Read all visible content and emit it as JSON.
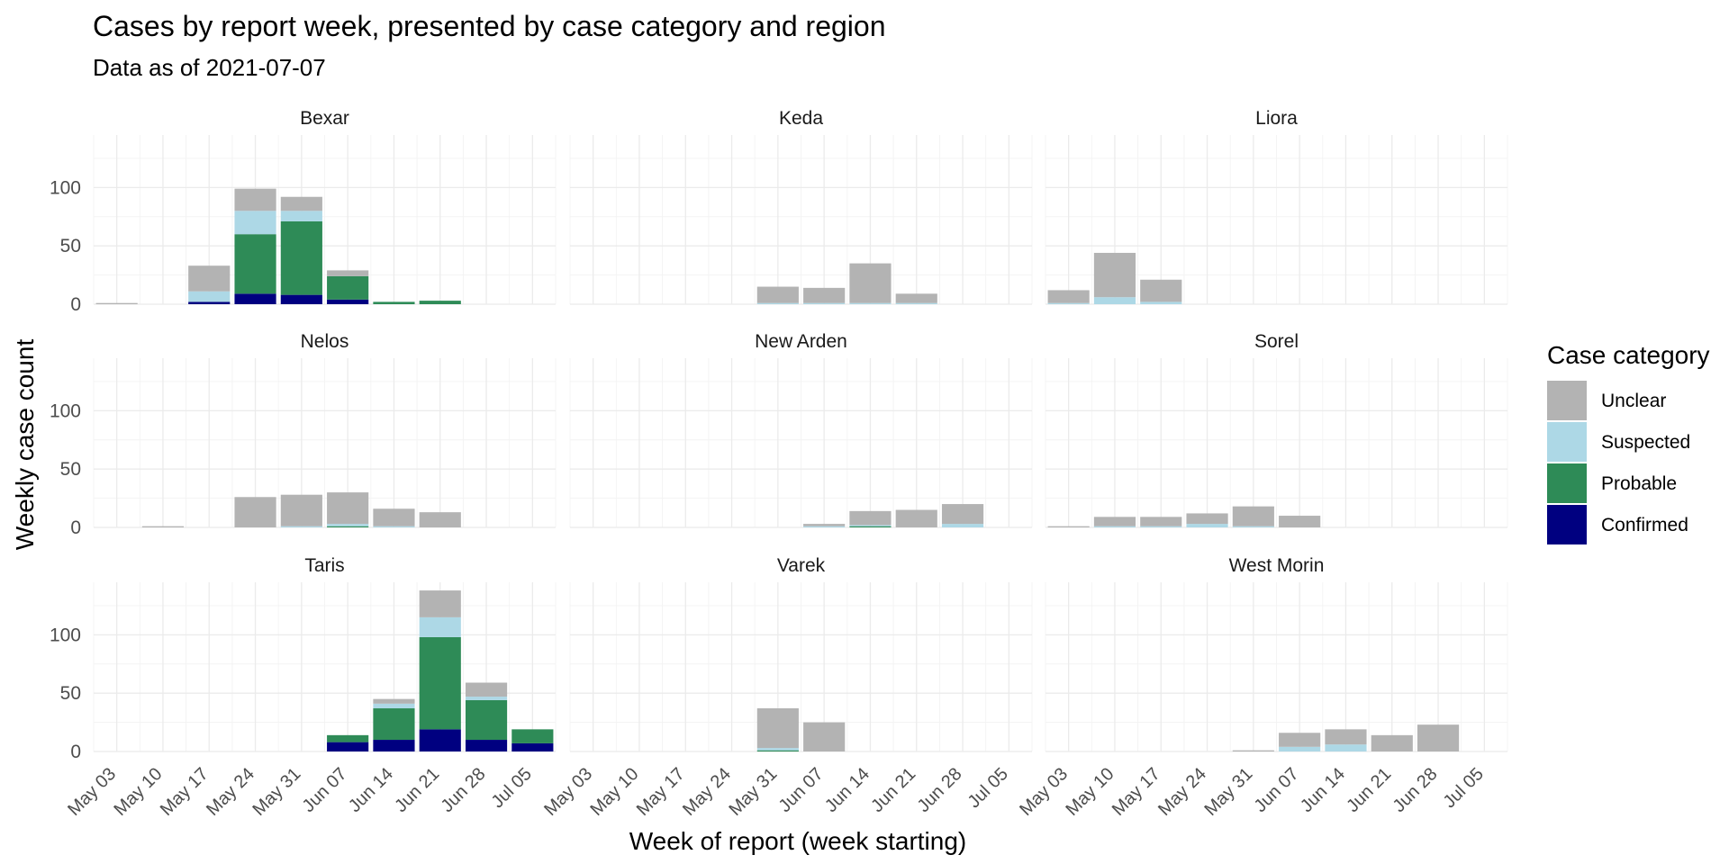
{
  "chart_data": {
    "type": "bar",
    "stacked": true,
    "title": "Cases by report week, presented by case category and region",
    "subtitle": "Data as of 2021-07-07",
    "xlabel": "Week of report (week starting)",
    "ylabel": "Weekly case count",
    "ylim": [
      0,
      145
    ],
    "yticks": [
      "0",
      "50",
      "100"
    ],
    "categories": [
      "May 03",
      "May 10",
      "May 17",
      "May 24",
      "May 31",
      "Jun 07",
      "Jun 14",
      "Jun 21",
      "Jun 28",
      "Jul 05"
    ],
    "grid": true,
    "legend": {
      "title": "Case category",
      "position": "right",
      "items": [
        {
          "name": "Unclear",
          "color": "#b3b3b3"
        },
        {
          "name": "Suspected",
          "color": "#add8e6"
        },
        {
          "name": "Probable",
          "color": "#2e8b57"
        },
        {
          "name": "Confirmed",
          "color": "#000080"
        }
      ]
    },
    "series_order": [
      "Confirmed",
      "Probable",
      "Suspected",
      "Unclear"
    ],
    "colors": {
      "Unclear": "#b3b3b3",
      "Suspected": "#add8e6",
      "Probable": "#2e8b57",
      "Confirmed": "#000080"
    },
    "panels": [
      {
        "name": "Bexar",
        "Confirmed": [
          0,
          0,
          2,
          9,
          8,
          4,
          0,
          0,
          0,
          0
        ],
        "Probable": [
          0,
          0,
          0,
          51,
          63,
          20,
          2,
          3,
          0,
          0
        ],
        "Suspected": [
          0,
          0,
          9,
          20,
          9,
          0,
          0,
          0,
          0,
          0
        ],
        "Unclear": [
          1,
          0,
          22,
          19,
          12,
          5,
          0,
          0,
          0,
          0
        ]
      },
      {
        "name": "Keda",
        "Confirmed": [
          0,
          0,
          0,
          0,
          0,
          0,
          0,
          0,
          0,
          0
        ],
        "Probable": [
          0,
          0,
          0,
          0,
          0,
          0,
          0,
          0,
          0,
          0
        ],
        "Suspected": [
          0,
          0,
          0,
          0,
          1,
          1,
          1,
          1,
          0,
          0
        ],
        "Unclear": [
          0,
          0,
          0,
          0,
          14,
          13,
          34,
          8,
          0,
          0
        ]
      },
      {
        "name": "Liora",
        "Confirmed": [
          0,
          0,
          0,
          0,
          0,
          0,
          0,
          0,
          0,
          0
        ],
        "Probable": [
          0,
          0,
          0,
          0,
          0,
          0,
          0,
          0,
          0,
          0
        ],
        "Suspected": [
          1,
          6,
          2,
          0,
          0,
          0,
          0,
          0,
          0,
          0
        ],
        "Unclear": [
          11,
          38,
          19,
          0,
          0,
          0,
          0,
          0,
          0,
          0
        ]
      },
      {
        "name": "Nelos",
        "Confirmed": [
          0,
          0,
          0,
          0,
          0,
          0,
          0,
          0,
          0,
          0
        ],
        "Probable": [
          0,
          0,
          0,
          0,
          0,
          1,
          0,
          0,
          0,
          0
        ],
        "Suspected": [
          0,
          0,
          0,
          0,
          1,
          2,
          1,
          0,
          0,
          0
        ],
        "Unclear": [
          0,
          1,
          0,
          26,
          27,
          27,
          15,
          13,
          0,
          0
        ]
      },
      {
        "name": "New Arden",
        "Confirmed": [
          0,
          0,
          0,
          0,
          0,
          0,
          0,
          0,
          0,
          0
        ],
        "Probable": [
          0,
          0,
          0,
          0,
          0,
          0,
          1,
          0,
          0,
          0
        ],
        "Suspected": [
          0,
          0,
          0,
          0,
          0,
          1,
          1,
          0,
          3,
          0
        ],
        "Unclear": [
          0,
          0,
          0,
          0,
          0,
          2,
          12,
          15,
          17,
          0
        ]
      },
      {
        "name": "Sorel",
        "Confirmed": [
          0,
          0,
          0,
          0,
          0,
          0,
          0,
          0,
          0,
          0
        ],
        "Probable": [
          0,
          0,
          0,
          0,
          0,
          0,
          0,
          0,
          0,
          0
        ],
        "Suspected": [
          0,
          1,
          1,
          3,
          1,
          0,
          0,
          0,
          0,
          0
        ],
        "Unclear": [
          1,
          8,
          8,
          9,
          17,
          10,
          0,
          0,
          0,
          0
        ]
      },
      {
        "name": "Taris",
        "Confirmed": [
          0,
          0,
          0,
          0,
          0,
          8,
          10,
          19,
          10,
          7
        ],
        "Probable": [
          0,
          0,
          0,
          0,
          0,
          6,
          27,
          79,
          34,
          12
        ],
        "Suspected": [
          0,
          0,
          0,
          0,
          0,
          0,
          4,
          17,
          3,
          0
        ],
        "Unclear": [
          0,
          0,
          0,
          0,
          0,
          0,
          4,
          23,
          12,
          0
        ]
      },
      {
        "name": "Varek",
        "Confirmed": [
          0,
          0,
          0,
          0,
          0,
          0,
          0,
          0,
          0,
          0
        ],
        "Probable": [
          0,
          0,
          0,
          0,
          1,
          0,
          0,
          0,
          0,
          0
        ],
        "Suspected": [
          0,
          0,
          0,
          0,
          2,
          0,
          0,
          0,
          0,
          0
        ],
        "Unclear": [
          0,
          0,
          0,
          0,
          34,
          25,
          0,
          0,
          0,
          0
        ]
      },
      {
        "name": "West Morin",
        "Confirmed": [
          0,
          0,
          0,
          0,
          0,
          0,
          0,
          0,
          0,
          0
        ],
        "Probable": [
          0,
          0,
          0,
          0,
          0,
          0,
          0,
          0,
          0,
          0
        ],
        "Suspected": [
          0,
          0,
          0,
          0,
          0,
          4,
          6,
          0,
          0,
          0
        ],
        "Unclear": [
          0,
          0,
          0,
          0,
          1,
          12,
          13,
          14,
          23,
          0
        ]
      }
    ]
  }
}
